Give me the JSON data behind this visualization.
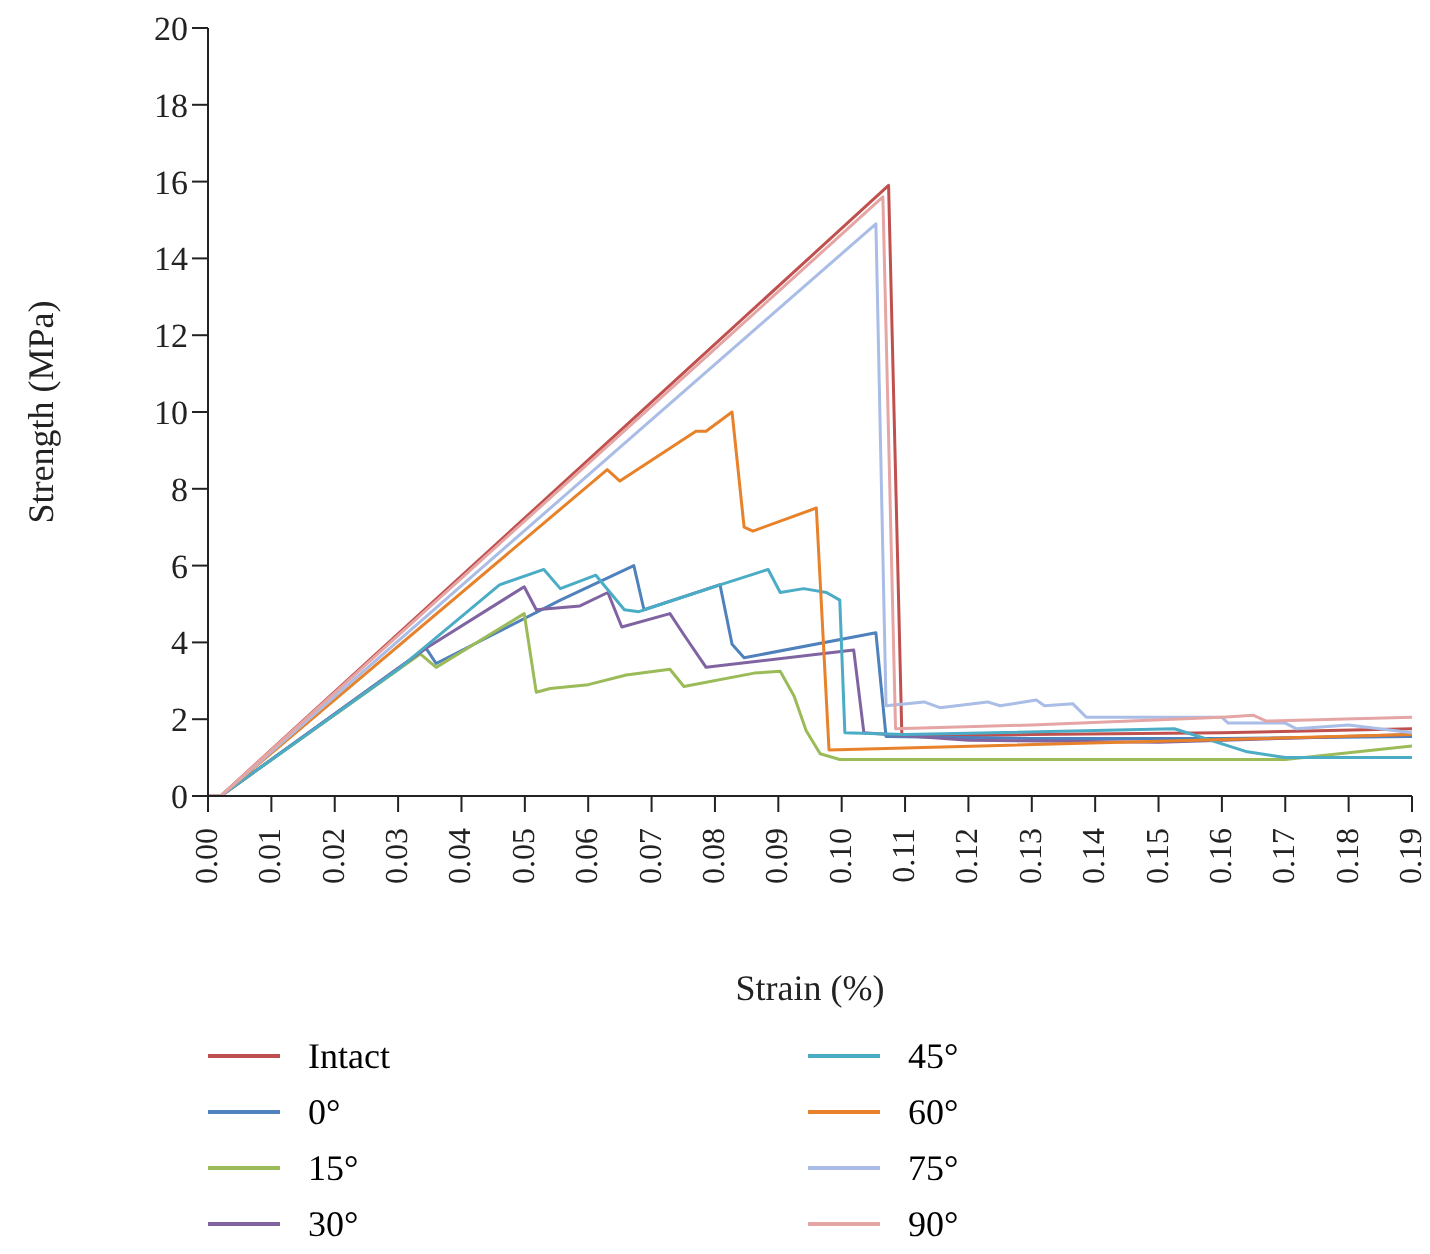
{
  "chart_data": {
    "type": "line",
    "xlabel": "Strain (%)",
    "ylabel": "Strength (MPa)",
    "xlim": [
      0,
      0.19
    ],
    "ylim": [
      0,
      20
    ],
    "xticks": [
      {
        "value": 0,
        "label": "0.00"
      },
      0.01,
      0.02,
      0.03,
      0.04,
      0.05,
      0.06,
      0.07,
      0.08,
      0.09,
      {
        "value": 0.1,
        "label": "0.10"
      },
      0.11,
      0.12,
      0.13,
      0.14,
      0.15,
      0.16,
      0.17,
      0.18,
      0.19
    ],
    "yticks": [
      0,
      2,
      4,
      6,
      8,
      10,
      12,
      14,
      16,
      18,
      20
    ],
    "grid": false,
    "legend": "bottom",
    "marker": "none",
    "line_style": "solid",
    "series": [
      {
        "name": "Intact",
        "color": "#c0504d",
        "x": [
          0,
          0.002,
          0.1074,
          0.1095,
          0.13,
          0.16,
          0.19
        ],
        "values": [
          0,
          0,
          15.9,
          1.55,
          1.6,
          1.65,
          1.75
        ]
      },
      {
        "name": "0°",
        "color": "#4f81bd",
        "x": [
          0,
          0.002,
          0.0344,
          0.036,
          0.0556,
          0.0672,
          0.0688,
          0.0808,
          0.0827,
          0.0846,
          0.1054,
          0.107,
          0.13,
          0.16,
          0.19
        ],
        "values": [
          0,
          0,
          3.85,
          3.45,
          5.1,
          6,
          4.85,
          5.5,
          3.95,
          3.6,
          4.25,
          1.55,
          1.5,
          1.5,
          1.55
        ]
      },
      {
        "name": "15°",
        "color": "#9bbb59",
        "x": [
          0,
          0.002,
          0.0335,
          0.036,
          0.0499,
          0.0518,
          0.054,
          0.06,
          0.066,
          0.0729,
          0.0751,
          0.0862,
          0.0903,
          0.0925,
          0.0944,
          0.0966,
          0.0997,
          0.13,
          0.17,
          0.19
        ],
        "values": [
          0,
          0,
          3.7,
          3.35,
          4.75,
          2.7,
          2.8,
          2.9,
          3.15,
          3.3,
          2.85,
          3.2,
          3.25,
          2.6,
          1.7,
          1.1,
          0.95,
          0.95,
          0.95,
          1.3
        ]
      },
      {
        "name": "30°",
        "color": "#8064a2",
        "x": [
          0,
          0.002,
          0.0344,
          0.0499,
          0.0518,
          0.0587,
          0.0631,
          0.0653,
          0.0729,
          0.0751,
          0.0786,
          0.1019,
          0.1035,
          0.12,
          0.15,
          0.19
        ],
        "values": [
          0,
          0,
          3.85,
          5.45,
          4.85,
          4.95,
          5.3,
          4.4,
          4.75,
          4.2,
          3.35,
          3.8,
          1.65,
          1.45,
          1.4,
          1.6
        ]
      },
      {
        "name": "45°",
        "color": "#4bacc6",
        "x": [
          0,
          0.002,
          0.03,
          0.046,
          0.053,
          0.0556,
          0.0612,
          0.0657,
          0.068,
          0.0808,
          0.0884,
          0.0903,
          0.094,
          0.0976,
          0.0997,
          0.1005,
          0.11,
          0.1525,
          0.164,
          0.17,
          0.19
        ],
        "values": [
          0,
          0,
          3.3,
          5.5,
          5.9,
          5.4,
          5.75,
          4.85,
          4.8,
          5.5,
          5.9,
          5.3,
          5.4,
          5.3,
          5.1,
          1.65,
          1.6,
          1.75,
          1.15,
          1.0,
          1.0
        ]
      },
      {
        "name": "60°",
        "color": "#e8822a",
        "x": [
          0,
          0.002,
          0.063,
          0.065,
          0.077,
          0.0786,
          0.0827,
          0.0846,
          0.086,
          0.096,
          0.098,
          0.19
        ],
        "values": [
          0,
          0,
          8.5,
          8.2,
          9.5,
          9.5,
          10,
          7,
          6.9,
          7.5,
          1.2,
          1.6
        ]
      },
      {
        "name": "75°",
        "color": "#a9bde6",
        "x": [
          0,
          0.002,
          0.1054,
          0.107,
          0.113,
          0.1155,
          0.123,
          0.125,
          0.1307,
          0.132,
          0.1365,
          0.1386,
          0.16,
          0.161,
          0.17,
          0.1718,
          0.18,
          0.19
        ],
        "values": [
          0,
          0,
          14.9,
          2.35,
          2.45,
          2.3,
          2.45,
          2.35,
          2.5,
          2.35,
          2.4,
          2.05,
          2.05,
          1.9,
          1.9,
          1.75,
          1.85,
          1.65
        ]
      },
      {
        "name": "90°",
        "color": "#e6a5a5",
        "x": [
          0,
          0.002,
          0.1065,
          0.1085,
          0.13,
          0.16,
          0.165,
          0.167,
          0.19
        ],
        "values": [
          0,
          0,
          15.6,
          1.75,
          1.85,
          2.05,
          2.1,
          1.95,
          2.05
        ]
      }
    ]
  }
}
